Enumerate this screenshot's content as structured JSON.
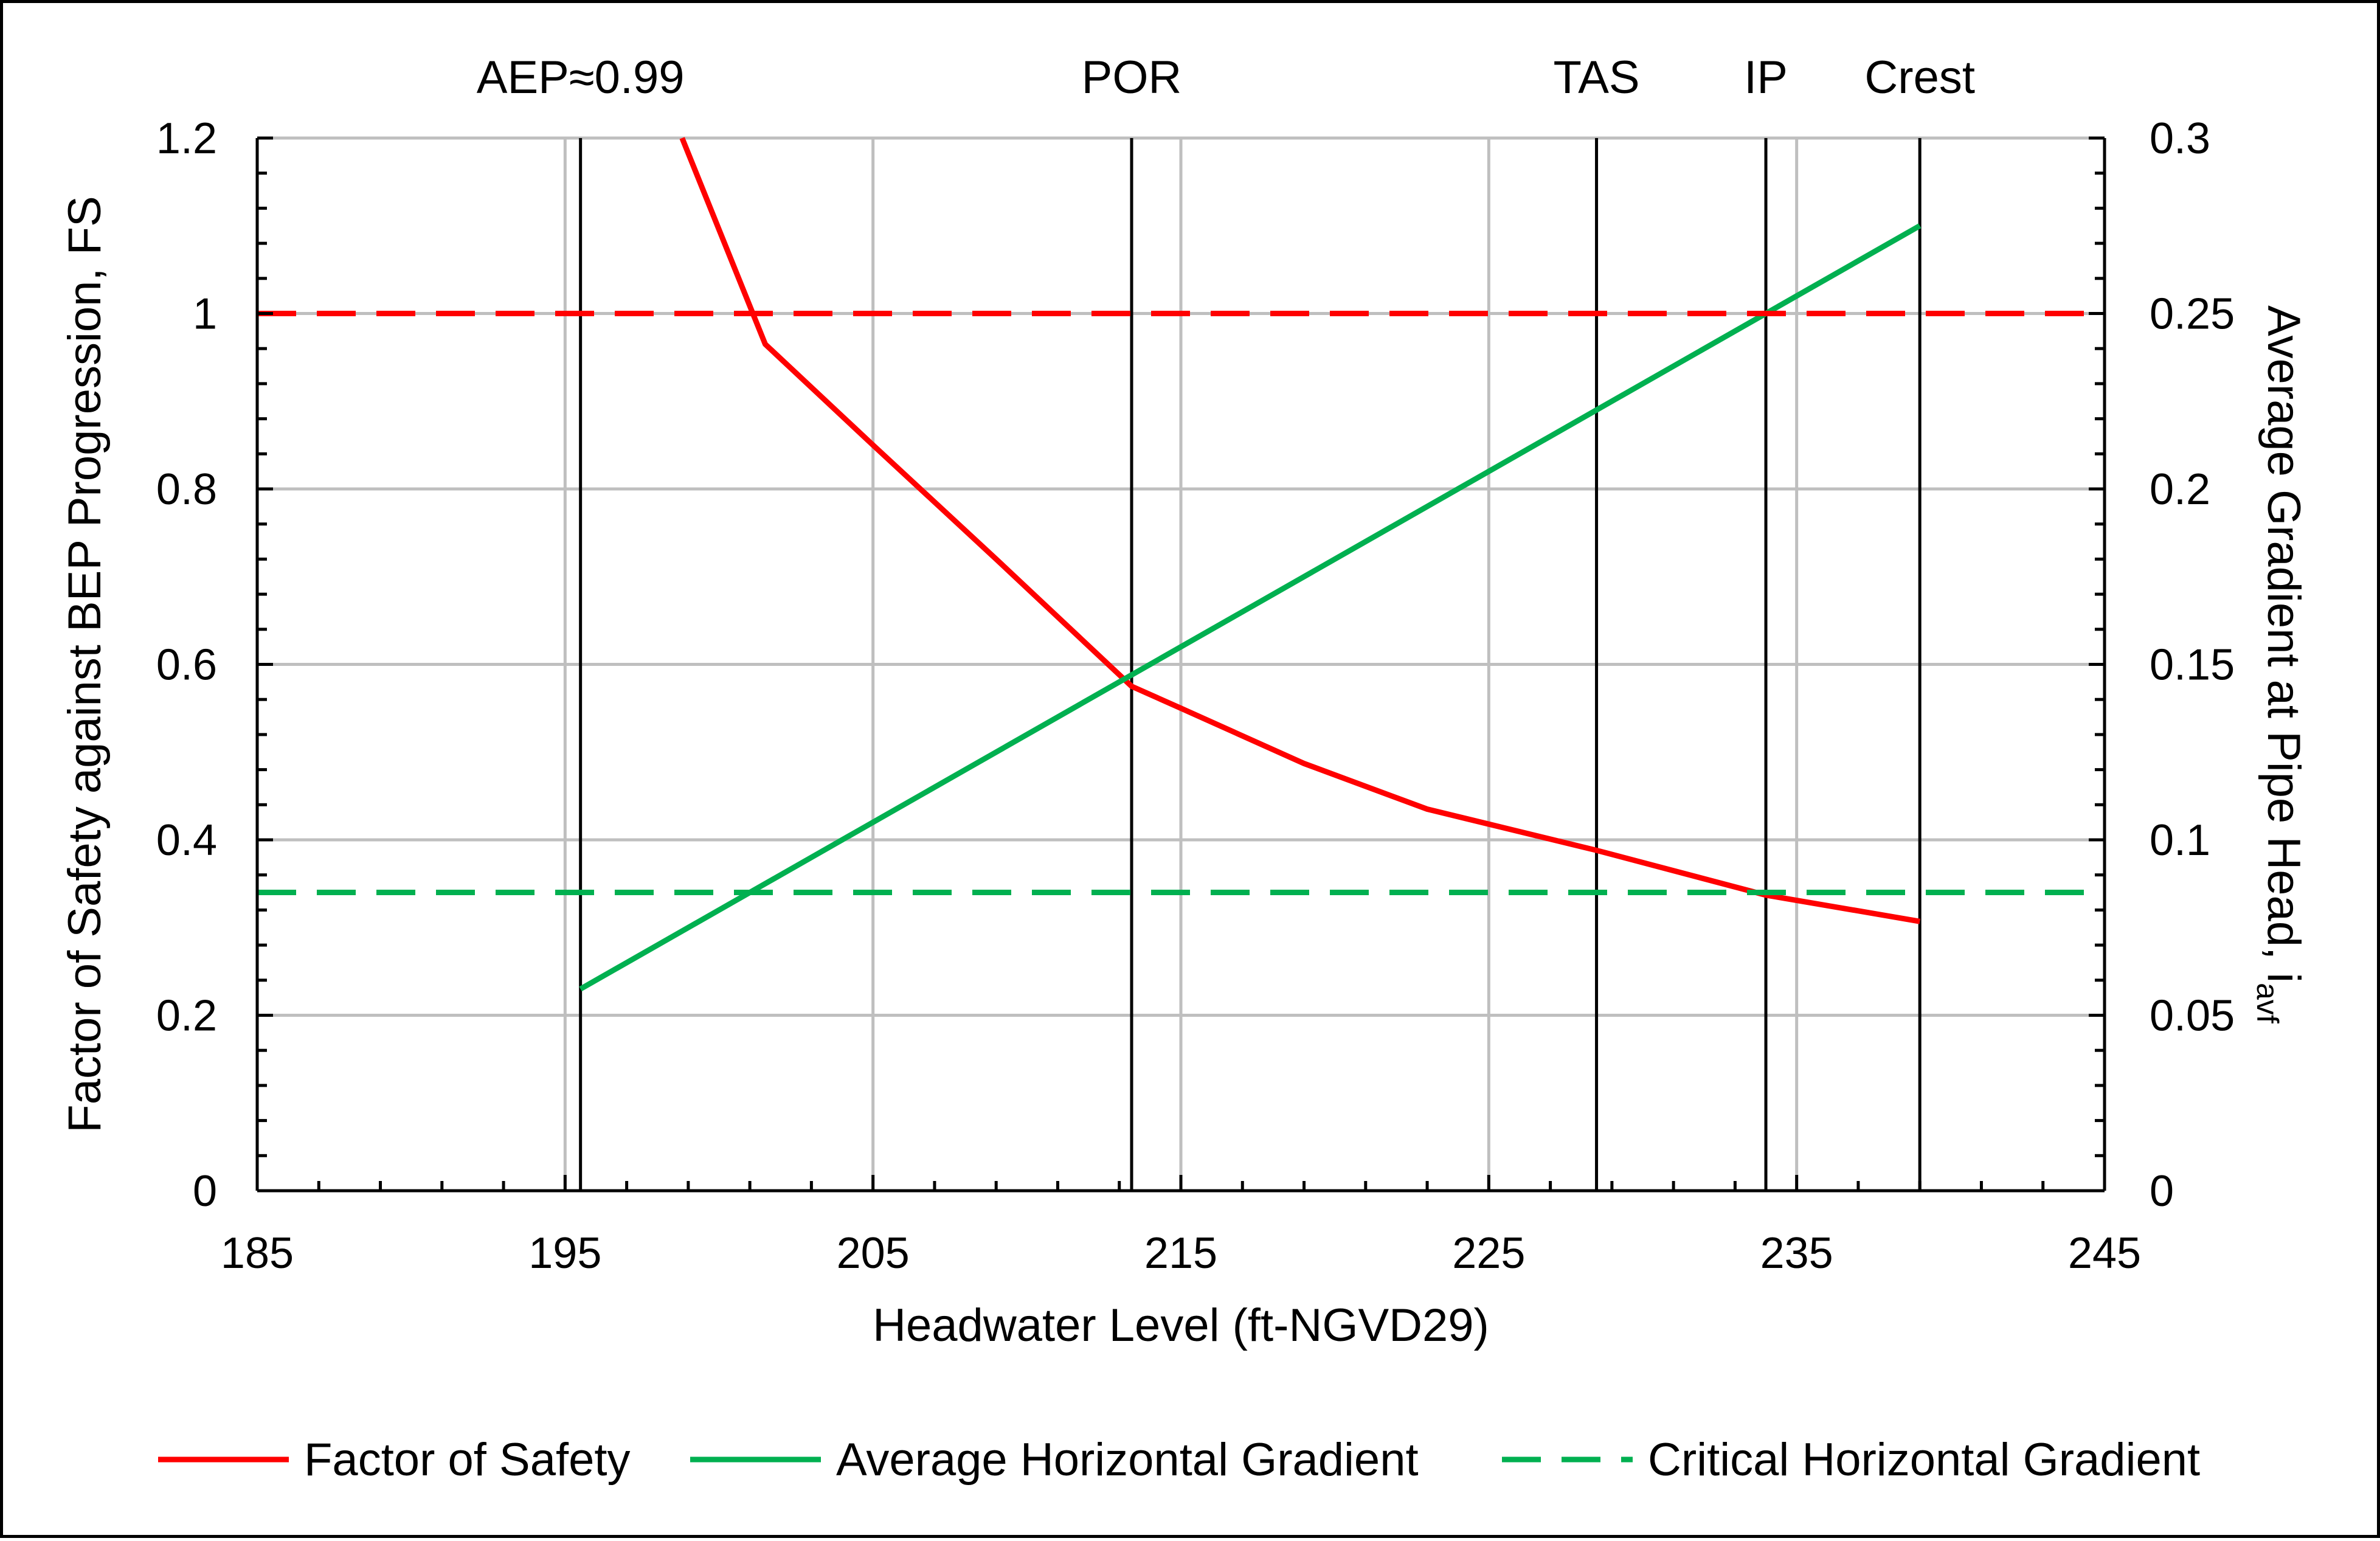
{
  "chart_data": {
    "type": "line",
    "xlabel": "Headwater Level (ft-NGVD29)",
    "ylabel_left": "Factor of Safety against BEP Progression, FS",
    "ylabel_right": {
      "main": "Average Gradient at Pipe Head, i",
      "subscript": "avf"
    },
    "xlim": [
      185,
      245
    ],
    "x_ticks": [
      185,
      195,
      205,
      215,
      225,
      235,
      245
    ],
    "ylim_left": [
      0,
      1.2
    ],
    "y_ticks_left": [
      "0",
      "0.2",
      "0.4",
      "0.6",
      "0.8",
      "1",
      "1.2"
    ],
    "ylim_right": [
      0,
      0.3
    ],
    "y_ticks_right": [
      "0",
      "0.05",
      "0.1",
      "0.15",
      "0.2",
      "0.25",
      "0.3"
    ],
    "grid": true,
    "legend_position": "bottom",
    "reference_lines": [
      {
        "label": "AEP≈0.99",
        "x": 195.5
      },
      {
        "label": "POR",
        "x": 213.4
      },
      {
        "label": "TAS",
        "x": 228.5
      },
      {
        "label": "IP",
        "x": 234
      },
      {
        "label": "Crest",
        "x": 239
      }
    ],
    "series": [
      {
        "name": "Factor of Safety",
        "axis": "left",
        "style": "solid",
        "color": "#ff0000",
        "x": [
          198.8,
          201.5,
          205,
          209,
          213.4,
          215,
          219,
          223,
          228.5,
          234,
          239
        ],
        "y": [
          1.2,
          0.965,
          0.85,
          0.72,
          0.575,
          0.55,
          0.487,
          0.435,
          0.388,
          0.337,
          0.307
        ]
      },
      {
        "name": "Average Horizontal Gradient",
        "axis": "right",
        "style": "solid",
        "color": "#00b050",
        "x": [
          195.5,
          239
        ],
        "y": [
          0.0575,
          0.275
        ]
      },
      {
        "name": "Critical Horizontal Gradient",
        "axis": "right",
        "style": "dashed",
        "color": "#00b050",
        "x": [
          185,
          245
        ],
        "y": [
          0.085,
          0.085
        ]
      },
      {
        "axis": "left",
        "style": "dashed",
        "color": "#ff0000",
        "x": [
          185,
          245
        ],
        "y": [
          1,
          1
        ]
      }
    ],
    "legend": [
      {
        "name": "Factor of Safety",
        "style": "solid",
        "color": "#ff0000"
      },
      {
        "name": "Average Horizontal Gradient",
        "style": "solid",
        "color": "#00b050"
      },
      {
        "name": "Critical Horizontal Gradient",
        "style": "dashed",
        "color": "#00b050"
      }
    ]
  }
}
